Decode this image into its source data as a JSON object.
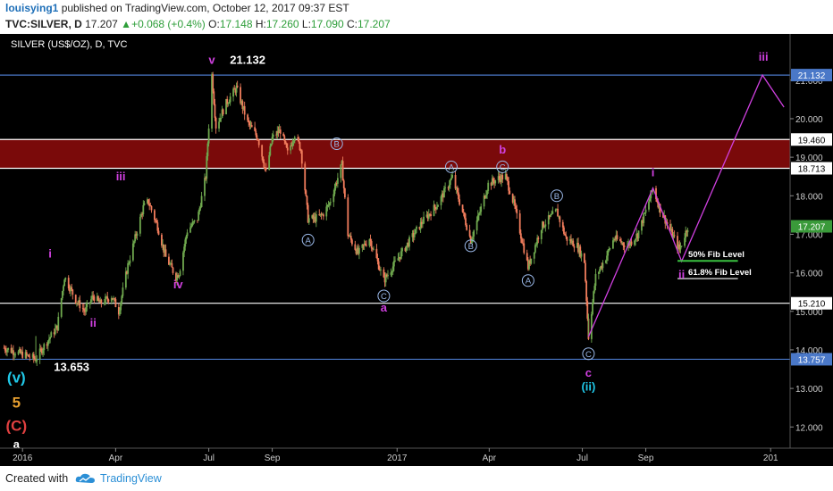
{
  "header": {
    "user": "louisying1",
    "published_text": "published on TradingView.com, October 12, 2017 09:37 EST",
    "symbol": "TVC:SILVER, D",
    "last": "17.207",
    "change": "+0.068 (+0.4%)",
    "o_label": "O:",
    "o_value": "17.148",
    "h_label": "H:",
    "h_value": "17.260",
    "l_label": "L:",
    "l_value": "17.090",
    "c_label": "C:",
    "c_value": "17.207"
  },
  "footer": {
    "created_with": "Created with",
    "brand": "TradingView"
  },
  "colors": {
    "background": "#000000",
    "candle_up": "#6fa84e",
    "candle_down": "#f07c5c",
    "resistance_zone": "#7a0a0a",
    "blue_line": "#4a78c8",
    "white_line": "#ffffff",
    "wave_magenta": "#d040e0",
    "wave_cyan": "#20c8e8",
    "wave_orange": "#e8a030",
    "wave_red": "#e04040",
    "circle_label": "#9ab8e8",
    "fib_green": "#3ac040",
    "price_tag_blue": "#4a78c8",
    "price_tag_green": "#3a9a3a"
  },
  "chart_data": {
    "type": "candlestick",
    "title": "SILVER (US$/OZ), D, TVC",
    "x_tick_labels": [
      "2016",
      "Apr",
      "Jul",
      "Sep",
      "2017",
      "Apr",
      "Jul",
      "Sep",
      "201"
    ],
    "y_ticks": [
      12.0,
      13.0,
      14.0,
      15.0,
      16.0,
      17.0,
      18.0,
      19.0,
      20.0,
      21.0
    ],
    "y_tick_labels": [
      "12.000",
      "13.000",
      "14.000",
      "15.000",
      "16.000",
      "17.000",
      "18.000",
      "19.000",
      "20.000",
      "21.000"
    ],
    "ylim": [
      11.45,
      22.2
    ],
    "x_domain": [
      "2015-12-10",
      "2018-01-20"
    ],
    "price_path": [
      [
        "2015-12-14",
        14.05
      ],
      [
        "2016-01-05",
        13.85
      ],
      [
        "2016-01-14",
        13.76
      ],
      [
        "2016-01-22",
        14.1
      ],
      [
        "2016-02-04",
        14.6
      ],
      [
        "2016-02-11",
        15.9
      ],
      [
        "2016-02-22",
        15.3
      ],
      [
        "2016-03-02",
        15.0
      ],
      [
        "2016-03-10",
        15.4
      ],
      [
        "2016-03-17",
        15.2
      ],
      [
        "2016-03-28",
        15.4
      ],
      [
        "2016-04-04",
        15.0
      ],
      [
        "2016-04-13",
        16.2
      ],
      [
        "2016-04-21",
        17.0
      ],
      [
        "2016-04-28",
        17.7
      ],
      [
        "2016-05-03",
        17.85
      ],
      [
        "2016-05-12",
        17.2
      ],
      [
        "2016-05-20",
        16.4
      ],
      [
        "2016-05-30",
        15.9
      ],
      [
        "2016-06-02",
        16.0
      ],
      [
        "2016-06-10",
        17.1
      ],
      [
        "2016-06-20",
        17.4
      ],
      [
        "2016-06-28",
        18.5
      ],
      [
        "2016-07-04",
        21.132
      ],
      [
        "2016-07-08",
        19.8
      ],
      [
        "2016-07-18",
        20.4
      ],
      [
        "2016-07-28",
        20.8
      ],
      [
        "2016-08-08",
        19.9
      ],
      [
        "2016-08-18",
        19.5
      ],
      [
        "2016-08-26",
        18.6
      ],
      [
        "2016-09-01",
        19.5
      ],
      [
        "2016-09-09",
        19.7
      ],
      [
        "2016-09-16",
        19.1
      ],
      [
        "2016-09-23",
        19.6
      ],
      [
        "2016-09-29",
        19.2
      ],
      [
        "2016-10-06",
        17.4
      ],
      [
        "2016-10-12",
        17.4
      ],
      [
        "2016-10-20",
        17.5
      ],
      [
        "2016-10-27",
        17.8
      ],
      [
        "2016-11-08",
        18.8
      ],
      [
        "2016-11-14",
        17.0
      ],
      [
        "2016-11-24",
        16.5
      ],
      [
        "2016-12-05",
        16.9
      ],
      [
        "2016-12-19",
        15.8
      ],
      [
        "2017-01-05",
        16.5
      ],
      [
        "2017-01-25",
        17.3
      ],
      [
        "2017-02-10",
        17.8
      ],
      [
        "2017-02-24",
        18.48
      ],
      [
        "2017-03-08",
        17.4
      ],
      [
        "2017-03-14",
        16.85
      ],
      [
        "2017-03-22",
        17.5
      ],
      [
        "2017-03-31",
        18.3
      ],
      [
        "2017-04-10",
        18.45
      ],
      [
        "2017-04-17",
        18.5
      ],
      [
        "2017-04-25",
        17.8
      ],
      [
        "2017-05-09",
        16.15
      ],
      [
        "2017-05-22",
        17.2
      ],
      [
        "2017-06-06",
        17.6
      ],
      [
        "2017-06-15",
        16.9
      ],
      [
        "2017-06-26",
        16.7
      ],
      [
        "2017-07-03",
        16.3
      ],
      [
        "2017-07-07",
        14.34
      ],
      [
        "2017-07-14",
        15.9
      ],
      [
        "2017-07-24",
        16.4
      ],
      [
        "2017-08-01",
        16.9
      ],
      [
        "2017-08-14",
        16.7
      ],
      [
        "2017-08-24",
        17.0
      ],
      [
        "2017-09-01",
        17.6
      ],
      [
        "2017-09-08",
        18.2
      ],
      [
        "2017-09-15",
        17.65
      ],
      [
        "2017-09-25",
        17.1
      ],
      [
        "2017-10-04",
        16.6
      ],
      [
        "2017-10-12",
        17.207
      ]
    ],
    "horizontal_levels": [
      {
        "price": 21.132,
        "color": "#4a78c8"
      },
      {
        "price": 19.46,
        "color": "#ffffff"
      },
      {
        "price": 18.713,
        "color": "#ffffff"
      },
      {
        "price": 15.21,
        "color": "#ffffff"
      },
      {
        "price": 13.757,
        "color": "#4a78c8"
      }
    ],
    "resistance_zone": [
      18.713,
      19.46
    ],
    "price_tags": [
      {
        "price": 21.132,
        "label": "21.132",
        "color": "#4a78c8"
      },
      {
        "price": 19.46,
        "label": "19.460",
        "color": "#ffffff"
      },
      {
        "price": 18.713,
        "label": "18.713",
        "color": "#ffffff"
      },
      {
        "price": 17.207,
        "label": "17.207",
        "color": "#3a9a3a"
      },
      {
        "price": 15.21,
        "label": "15.210",
        "color": "#ffffff"
      },
      {
        "price": 13.757,
        "label": "13.757",
        "color": "#4a78c8"
      }
    ],
    "projection_path": [
      [
        "2017-07-07",
        14.34
      ],
      [
        "2017-09-08",
        18.2
      ],
      [
        "2017-10-06",
        16.3
      ],
      [
        "2017-12-24",
        21.132
      ],
      [
        "2018-01-14",
        20.3
      ]
    ],
    "fib_levels": [
      {
        "label": "50% Fib Level",
        "price": 16.31,
        "color": "#3ac040"
      },
      {
        "label": "61.8% Fib Level",
        "price": 15.85,
        "color": "#ffffff"
      }
    ],
    "annotations": [
      {
        "text": "v",
        "date": "2016-07-04",
        "price": 21.42,
        "color": "#d040e0",
        "style": "bold"
      },
      {
        "text": "21.132",
        "date": "2016-08-08",
        "price": 21.42,
        "color": "#ffffff",
        "style": "bold"
      },
      {
        "text": "13.653",
        "date": "2016-02-18",
        "price": 13.45,
        "color": "#ffffff",
        "style": "bold"
      },
      {
        "text": "i",
        "date": "2016-01-28",
        "price": 16.4,
        "color": "#d040e0",
        "style": "bold"
      },
      {
        "text": "ii",
        "date": "2016-03-10",
        "price": 14.6,
        "color": "#d040e0",
        "style": "bold"
      },
      {
        "text": "iii",
        "date": "2016-04-06",
        "price": 18.4,
        "color": "#d040e0",
        "style": "bold"
      },
      {
        "text": "iv",
        "date": "2016-06-01",
        "price": 15.6,
        "color": "#d040e0",
        "style": "bold"
      },
      {
        "text": "(v)",
        "date": "2015-12-26",
        "price": 13.15,
        "color": "#20c8e8",
        "style": "bold"
      },
      {
        "text": "5",
        "date": "2015-12-26",
        "price": 12.5,
        "color": "#e8a030",
        "style": "bold"
      },
      {
        "text": "(C)",
        "date": "2015-12-26",
        "price": 11.9,
        "color": "#e04040",
        "style": "bold"
      },
      {
        "text": "a",
        "date": "2015-12-26",
        "price": 11.45,
        "color": "#ffffff",
        "style": "bold"
      },
      {
        "text": "a",
        "date": "2016-12-19",
        "price": 15.0,
        "color": "#d040e0",
        "style": "bold"
      },
      {
        "text": "b",
        "date": "2017-04-14",
        "price": 19.1,
        "color": "#d040e0",
        "style": "bold"
      },
      {
        "text": "i",
        "date": "2017-09-08",
        "price": 18.5,
        "color": "#d040e0",
        "style": "bold"
      },
      {
        "text": "ii",
        "date": "2017-10-06",
        "price": 15.85,
        "color": "#d040e0",
        "style": "bold"
      },
      {
        "text": "iii",
        "date": "2017-12-25",
        "price": 21.5,
        "color": "#d040e0",
        "style": "bold"
      },
      {
        "text": "c",
        "date": "2017-07-07",
        "price": 13.3,
        "color": "#d040e0",
        "style": "bold"
      },
      {
        "text": "(ii)",
        "date": "2017-07-07",
        "price": 12.95,
        "color": "#20c8e8",
        "style": "bold"
      }
    ],
    "circle_labels": [
      {
        "text": "B",
        "date": "2016-11-03",
        "price": 19.35
      },
      {
        "text": "A",
        "date": "2016-10-06",
        "price": 16.85
      },
      {
        "text": "C",
        "date": "2016-12-19",
        "price": 15.4
      },
      {
        "text": "A",
        "date": "2017-02-23",
        "price": 18.75
      },
      {
        "text": "B",
        "date": "2017-03-14",
        "price": 16.7
      },
      {
        "text": "C",
        "date": "2017-04-14",
        "price": 18.75
      },
      {
        "text": "A",
        "date": "2017-05-09",
        "price": 15.8
      },
      {
        "text": "B",
        "date": "2017-06-06",
        "price": 18.0
      },
      {
        "text": "C",
        "date": "2017-07-07",
        "price": 13.9
      }
    ]
  }
}
